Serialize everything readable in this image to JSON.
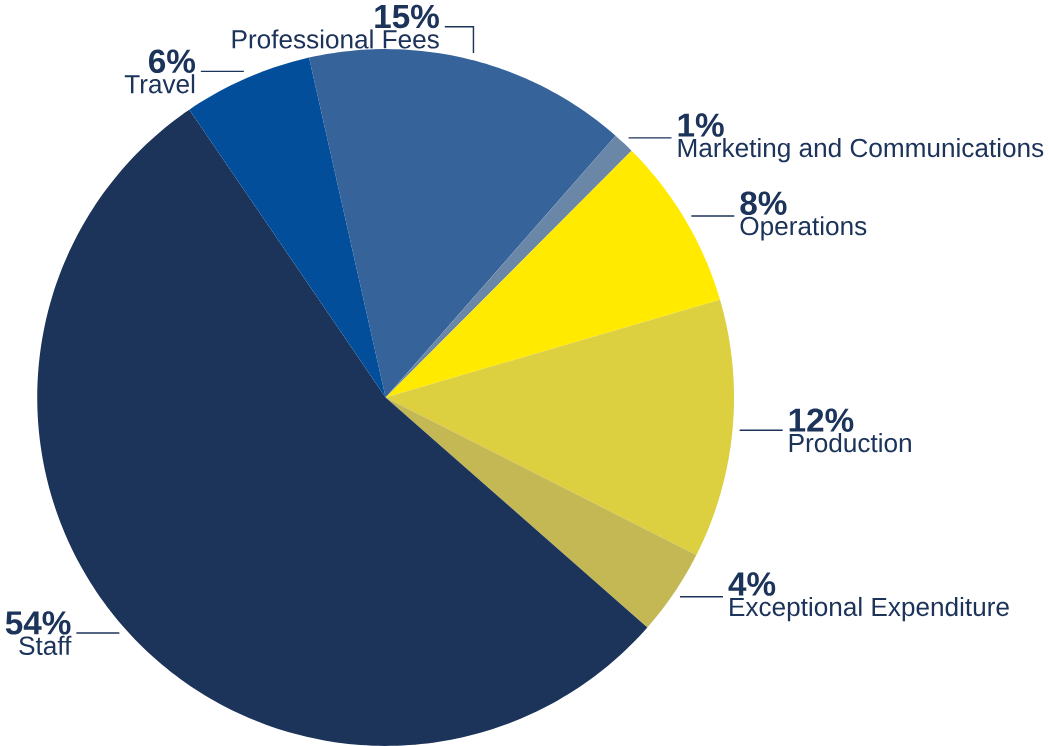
{
  "chart_data": {
    "type": "pie",
    "categories": [
      "Professional Fees",
      "Marketing and Communications",
      "Operations",
      "Production",
      "Exceptional Expenditure",
      "Staff",
      "Travel"
    ],
    "values": [
      15,
      1,
      8,
      12,
      4,
      54,
      6
    ],
    "value_labels": [
      "15%",
      "1%",
      "8%",
      "12%",
      "4%",
      "54%",
      "6%"
    ],
    "colors": [
      "#36649a",
      "#6a87a8",
      "#ffea00",
      "#dccf40",
      "#c4b854",
      "#1c335a",
      "#034e9a"
    ]
  }
}
